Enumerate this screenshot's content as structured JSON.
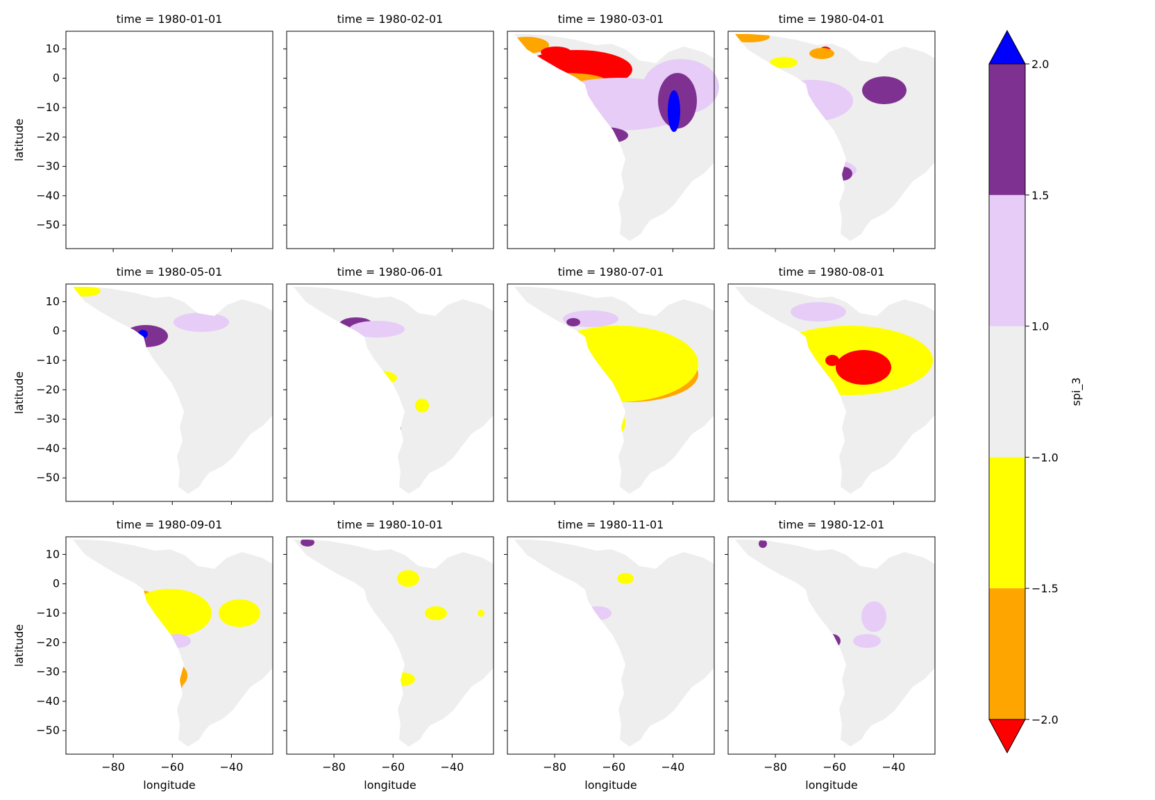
{
  "chart_data": {
    "type": "heatmap",
    "variable": "spi_3",
    "xlabel": "longitude",
    "ylabel": "latitude",
    "xlim": [
      -96,
      -26
    ],
    "ylim": [
      -58,
      16
    ],
    "xticks": [
      -80,
      -60,
      -40
    ],
    "yticks": [
      10,
      0,
      -10,
      -20,
      -30,
      -40,
      -50
    ],
    "xtick_labels": [
      "−80",
      "−60",
      "−40"
    ],
    "ytick_labels": [
      "10",
      "0",
      "−10",
      "−20",
      "−30",
      "−40",
      "−50"
    ],
    "panels": [
      {
        "title": "time = 1980-01-01",
        "has_data": false
      },
      {
        "title": "time = 1980-02-01",
        "has_data": false
      },
      {
        "title": "time = 1980-03-01",
        "has_data": true
      },
      {
        "title": "time = 1980-04-01",
        "has_data": true
      },
      {
        "title": "time = 1980-05-01",
        "has_data": true
      },
      {
        "title": "time = 1980-06-01",
        "has_data": true
      },
      {
        "title": "time = 1980-07-01",
        "has_data": true
      },
      {
        "title": "time = 1980-08-01",
        "has_data": true
      },
      {
        "title": "time = 1980-09-01",
        "has_data": true
      },
      {
        "title": "time = 1980-10-01",
        "has_data": true
      },
      {
        "title": "time = 1980-11-01",
        "has_data": true
      },
      {
        "title": "time = 1980-12-01",
        "has_data": true
      }
    ],
    "colorbar": {
      "label": "spi_3",
      "levels": [
        -2.0,
        -1.5,
        -1.0,
        1.0,
        1.5,
        2.0
      ],
      "tick_labels": [
        "−2.0",
        "−1.5",
        "−1.0",
        "1.0",
        "1.5",
        "2.0"
      ],
      "bands": [
        {
          "from": -1.5,
          "to": -1.0,
          "color": "#ffff00"
        },
        {
          "from": -2.0,
          "to": -1.5,
          "color": "#ffa500"
        },
        {
          "from": -1.0,
          "to": 1.0,
          "color": "#eeeeee"
        },
        {
          "from": 1.0,
          "to": 1.5,
          "color": "#e6ccf6"
        },
        {
          "from": 1.5,
          "to": 2.0,
          "color": "#7f3191"
        }
      ],
      "extend_min_color": "#ff0000",
      "extend_max_color": "#0000ff"
    }
  }
}
